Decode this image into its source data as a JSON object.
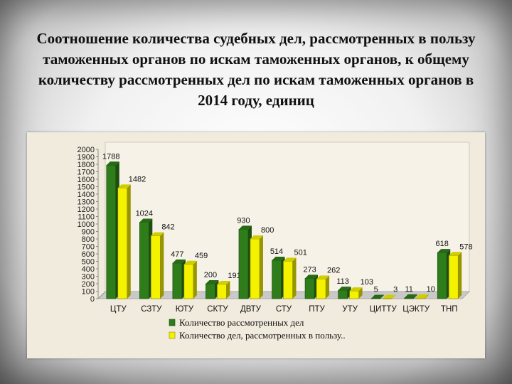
{
  "title": "Соотношение количества судебных дел, рассмотренных в пользу таможенных органов по искам таможенных органов, к общему количеству рассмотренных дел по искам таможенных органов в 2014 году, единиц",
  "chart_data": {
    "type": "bar",
    "title": "",
    "xlabel": "",
    "ylabel": "",
    "ylim": [
      0,
      2000
    ],
    "ytick_step": 100,
    "grid": false,
    "legend_position": "bottom",
    "categories": [
      "ЦТУ",
      "СЗТУ",
      "ЮТУ",
      "СКТУ",
      "ДВТУ",
      "СТУ",
      "ПТУ",
      "УТУ",
      "ЦИТТУ",
      "ЦЭКТУ",
      "ТНП"
    ],
    "series": [
      {
        "name": "Количество рассмотренных дел",
        "color": "#2e7d1a",
        "values": [
          1788,
          1024,
          477,
          200,
          930,
          514,
          273,
          113,
          5,
          11,
          618
        ],
        "labels": [
          "1788",
          "1024",
          "477",
          "200",
          "930",
          "514",
          "273",
          "113",
          "5",
          "11",
          "618"
        ]
      },
      {
        "name": "Количество дел, рассмотренных в пользу..",
        "color": "#f5f200",
        "values": [
          1482,
          842,
          459,
          191,
          800,
          501,
          262,
          103,
          3,
          10,
          578
        ],
        "labels": [
          "1482",
          "842",
          "459",
          "191",
          "800",
          "501",
          "262",
          "103",
          "3",
          "10",
          "578"
        ]
      }
    ]
  }
}
